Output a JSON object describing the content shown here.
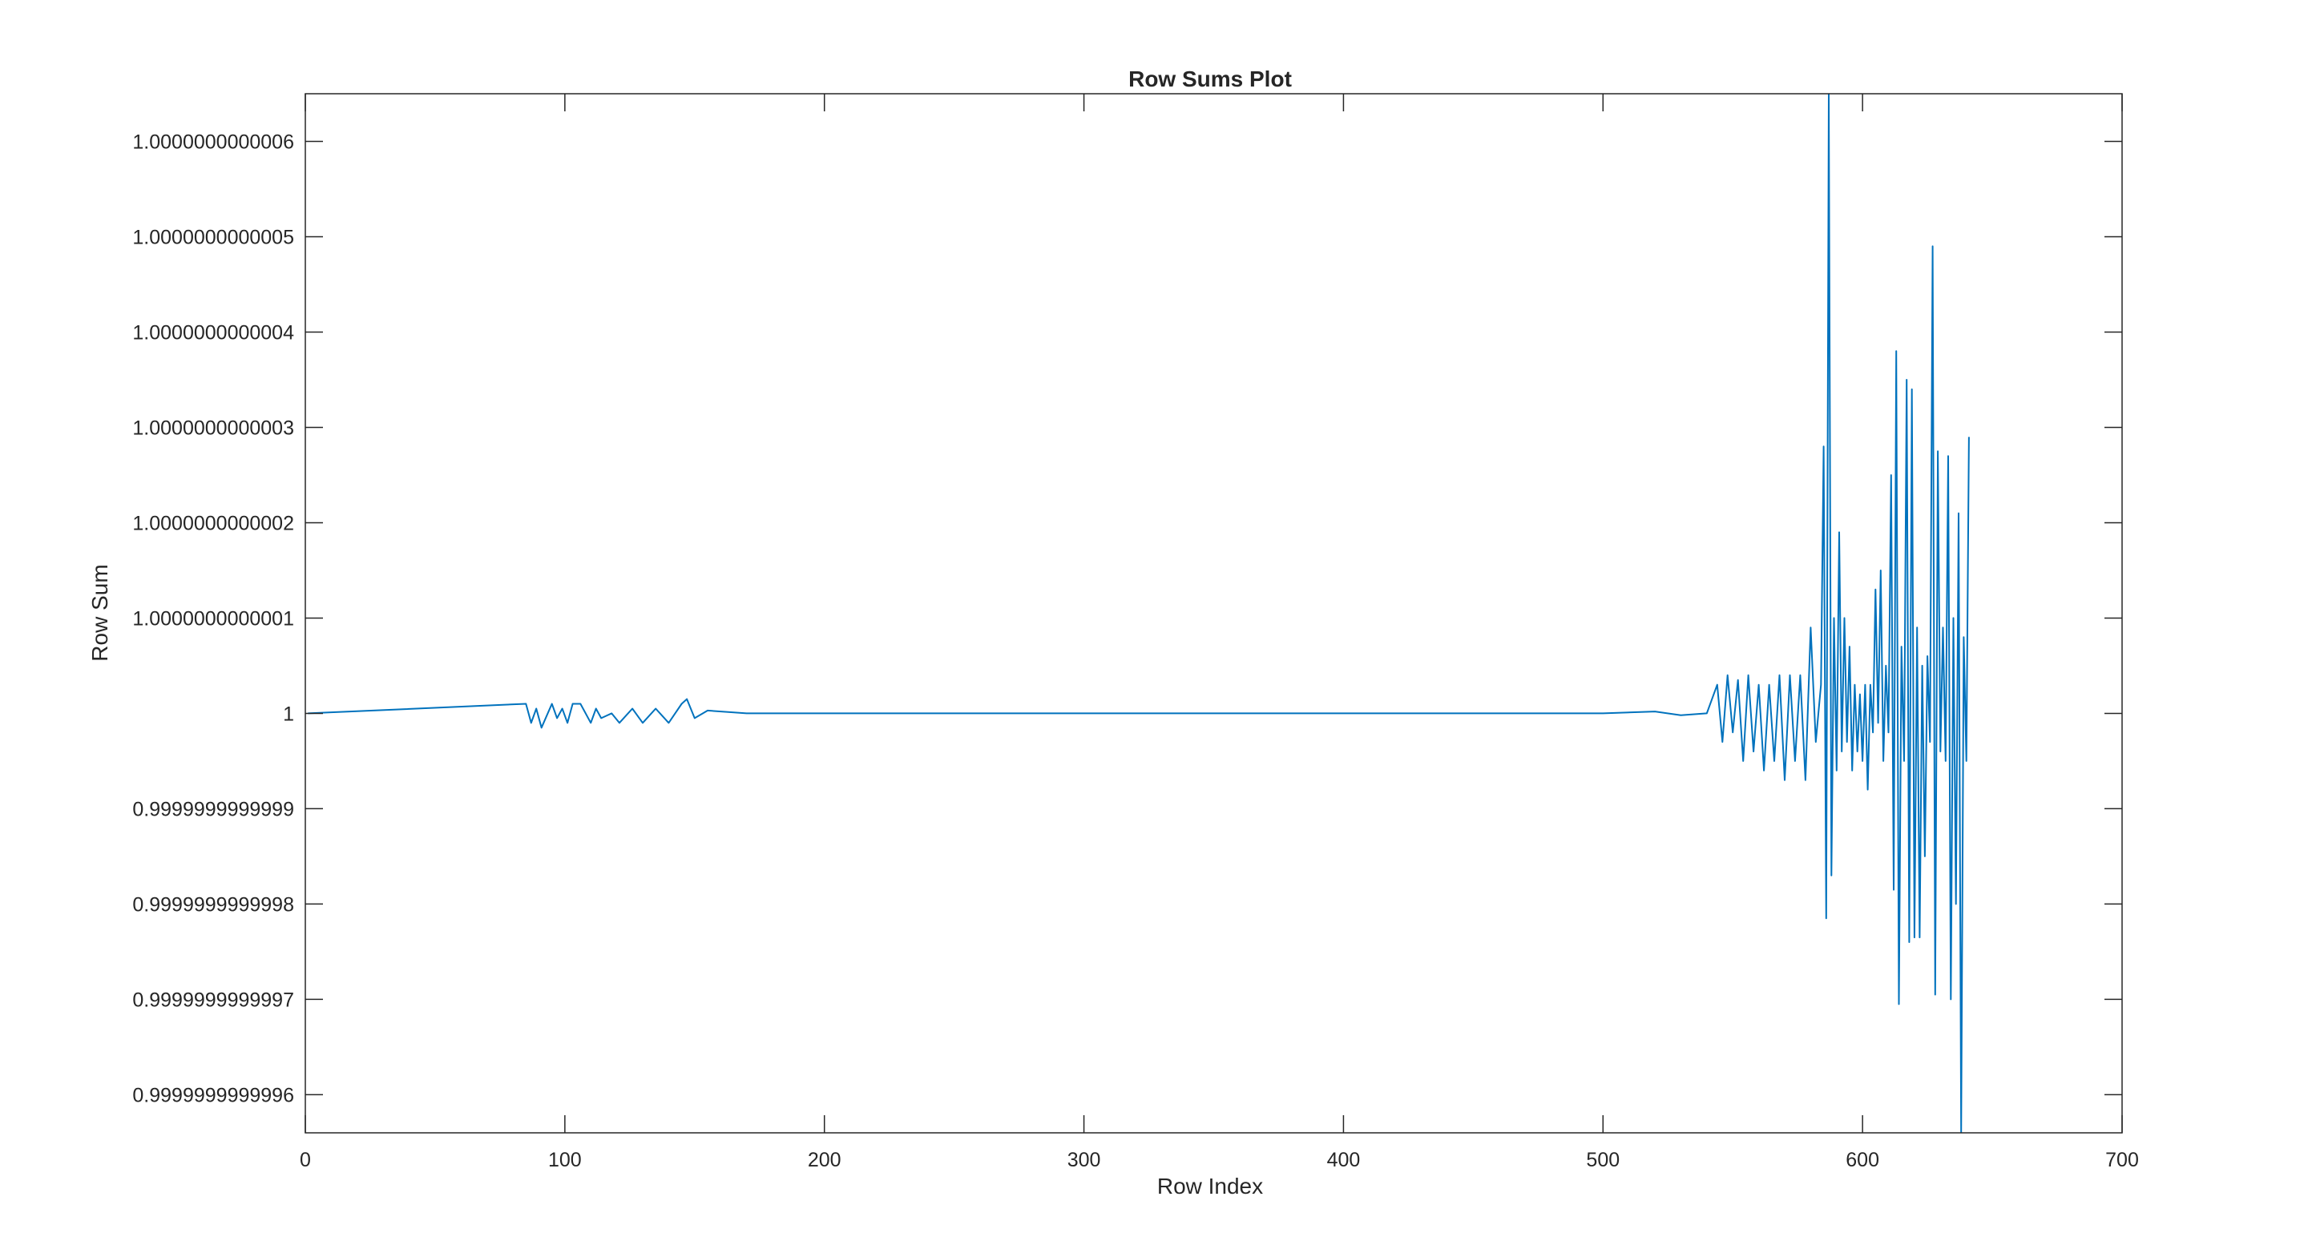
{
  "chart_data": {
    "type": "line",
    "title": "Row Sums Plot",
    "xlabel": "Row Index",
    "ylabel": "Row Sum",
    "xlim": [
      0,
      700
    ],
    "ylim_offset_from_1_e13": [
      -4.4,
      6.5
    ],
    "xticks": [
      0,
      100,
      200,
      300,
      400,
      500,
      600,
      700
    ],
    "xtick_labels": [
      "0",
      "100",
      "200",
      "300",
      "400",
      "500",
      "600",
      "700"
    ],
    "yticks_offset_from_1_e13": [
      -4,
      -3,
      -2,
      -1,
      0,
      1,
      2,
      3,
      4,
      5,
      6
    ],
    "ytick_labels": [
      "0.9999999999996",
      "0.9999999999997",
      "0.9999999999998",
      "0.9999999999999",
      "1",
      "1.0000000000001",
      "1.0000000000002",
      "1.0000000000003",
      "1.0000000000004",
      "1.0000000000005",
      "1.0000000000006"
    ],
    "grid": false,
    "box": true,
    "series_color": "#0072BD",
    "series": [
      {
        "name": "",
        "x": [
          1,
          85,
          87,
          89,
          91,
          95,
          97,
          99,
          101,
          103,
          106,
          110,
          112,
          114,
          118,
          121,
          126,
          130,
          135,
          140,
          145,
          147,
          150,
          155,
          170,
          200,
          300,
          400,
          500,
          520,
          530,
          540,
          544,
          546,
          548,
          550,
          552,
          554,
          556,
          558,
          560,
          562,
          564,
          566,
          568,
          570,
          572,
          574,
          576,
          578,
          580,
          582,
          584,
          585,
          586,
          587,
          588,
          589,
          590,
          591,
          592,
          593,
          594,
          595,
          596,
          597,
          598,
          599,
          600,
          601,
          602,
          603,
          604,
          605,
          606,
          607,
          608,
          609,
          610,
          611,
          612,
          613,
          614,
          615,
          616,
          617,
          618,
          619,
          620,
          621,
          622,
          623,
          624,
          625,
          626,
          627,
          628,
          629,
          630,
          631,
          632,
          633,
          634,
          635,
          636,
          637,
          638,
          639,
          640,
          641
        ],
        "y_offset_from_1_e13": [
          0.0,
          0.1,
          -0.1,
          0.05,
          -0.15,
          0.1,
          -0.05,
          0.05,
          -0.1,
          0.1,
          0.1,
          -0.1,
          0.05,
          -0.05,
          0.0,
          -0.1,
          0.05,
          -0.1,
          0.05,
          -0.1,
          0.1,
          0.15,
          -0.05,
          0.03,
          0.0,
          0.0,
          0.0,
          0.0,
          0.0,
          0.02,
          -0.02,
          0.0,
          0.3,
          -0.3,
          0.4,
          -0.2,
          0.35,
          -0.5,
          0.4,
          -0.4,
          0.3,
          -0.6,
          0.3,
          -0.5,
          0.4,
          -0.7,
          0.4,
          -0.5,
          0.4,
          -0.7,
          0.9,
          -0.3,
          0.3,
          2.8,
          -2.15,
          6.5,
          -1.7,
          1.0,
          -0.6,
          1.9,
          -0.4,
          1.0,
          -0.3,
          0.7,
          -0.6,
          0.3,
          -0.4,
          0.2,
          -0.5,
          0.3,
          -0.8,
          0.3,
          -0.2,
          1.3,
          -0.1,
          1.5,
          -0.5,
          0.5,
          -0.2,
          2.5,
          -1.85,
          3.8,
          -3.05,
          0.7,
          -0.5,
          3.5,
          -2.4,
          3.4,
          -2.35,
          0.9,
          -2.35,
          0.5,
          -1.5,
          0.6,
          -0.3,
          4.9,
          -2.95,
          2.75,
          -0.4,
          0.9,
          -0.5,
          2.7,
          -3.0,
          1.0,
          -2.0,
          2.1,
          -4.4,
          0.8,
          -0.5,
          2.9,
          0.3
        ]
      }
    ]
  }
}
